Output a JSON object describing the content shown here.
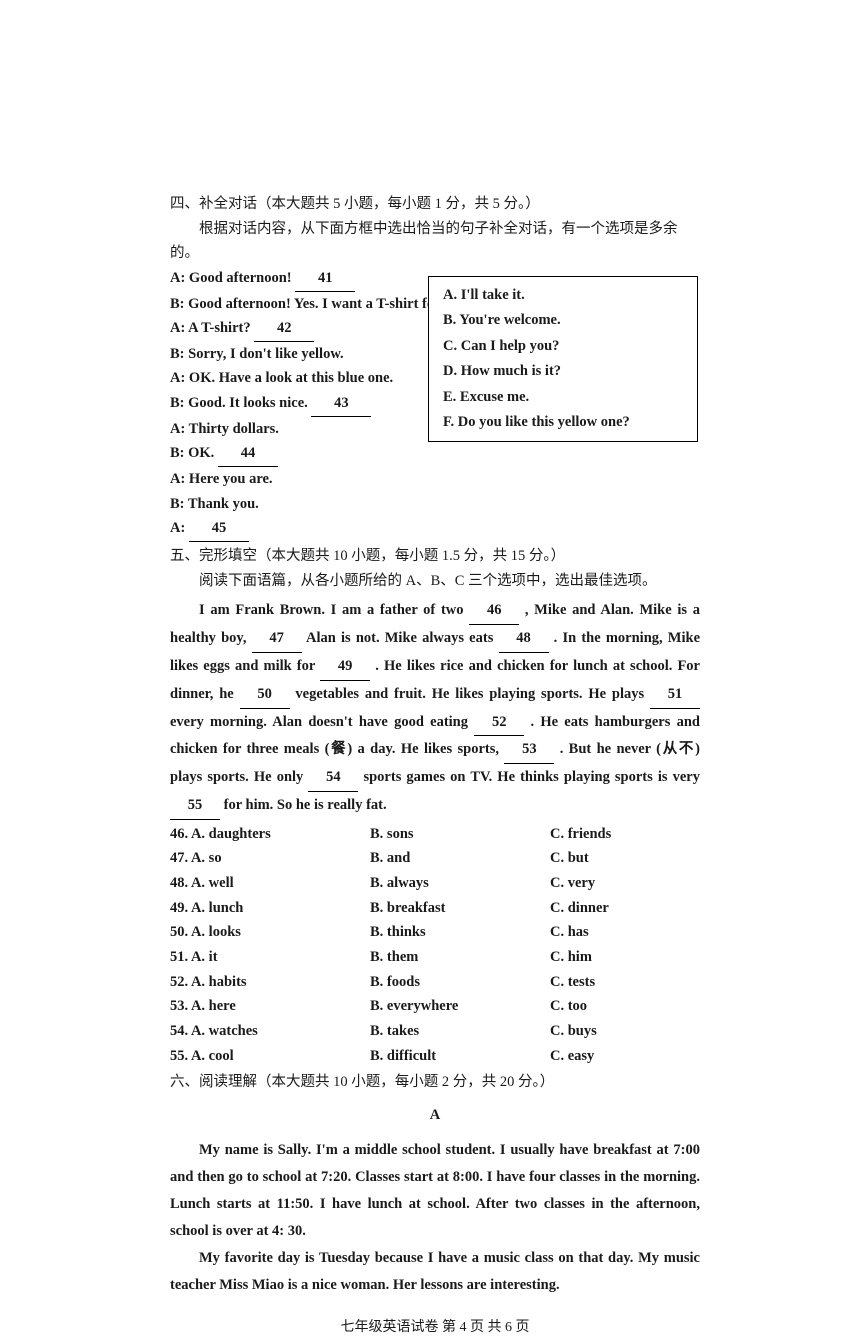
{
  "section4": {
    "title": "四、补全对话（本大题共 5 小题，每小题 1 分，共 5 分。）",
    "instruction": "根据对话内容，从下面方框中选出恰当的句子补全对话，有一个选项是多余的。",
    "lines": {
      "a1_pre": "A: Good afternoon!",
      "a1_blank": "41",
      "b1": "B: Good afternoon! Yes. I want a T-shirt for my son.",
      "a2_pre": "A: A T-shirt?",
      "a2_blank": "42",
      "b2": "B: Sorry, I don't like yellow.",
      "a3": "A: OK. Have a look at this blue one.",
      "b3_pre": "B: Good. It looks nice.",
      "b3_blank": "43",
      "a4": "A: Thirty dollars.",
      "b4_pre": "B: OK.",
      "b4_blank": "44",
      "a5": "A: Here you are.",
      "b5": "B: Thank you.",
      "a6_pre": "A:",
      "a6_blank": "45"
    },
    "box": {
      "A": "A. I'll take it.",
      "B": "B. You're welcome.",
      "C": "C. Can I help you?",
      "D": "D. How much is it?",
      "E": "E. Excuse me.",
      "F": "F. Do you like this yellow one?"
    }
  },
  "section5": {
    "title": "五、完形填空（本大题共 10 小题，每小题 1.5 分，共 15 分。）",
    "instruction": "阅读下面语篇，从各小题所给的 A、B、C  三个选项中，选出最佳选项。",
    "passage_parts": {
      "p1": "I am Frank Brown. I am a father of two ",
      "b46": "46",
      "p2": " , Mike and Alan. Mike is a healthy boy, ",
      "b47": "47",
      "p3": " Alan is not. Mike always eats ",
      "b48": "48",
      "p4": " . In the morning, Mike likes eggs and milk for ",
      "b49": "49",
      "p5": " . He likes rice and chicken for lunch at school. For dinner, he ",
      "b50": "50",
      "p6": " vegetables and fruit. He likes playing sports. He plays ",
      "b51": "51",
      "p7": " every morning. Alan doesn't have good eating ",
      "b52": "52",
      "p8": " . He eats hamburgers and chicken for three meals (餐) a day. He likes sports, ",
      "b53": "53",
      "p9": " . But he never (从不) plays sports. He only ",
      "b54": "54",
      "p10": " sports games on TV. He thinks playing sports is very ",
      "b55": "55",
      "p11": " for him. So he is really fat."
    },
    "choices": [
      {
        "n": "46.",
        "a": "A. daughters",
        "b": "B. sons",
        "c": "C. friends"
      },
      {
        "n": "47.",
        "a": "A. so",
        "b": "B. and",
        "c": "C. but"
      },
      {
        "n": "48.",
        "a": "A. well",
        "b": "B. always",
        "c": "C. very"
      },
      {
        "n": "49.",
        "a": "A. lunch",
        "b": "B. breakfast",
        "c": "C. dinner"
      },
      {
        "n": "50.",
        "a": "A. looks",
        "b": "B. thinks",
        "c": "C. has"
      },
      {
        "n": "51.",
        "a": "A. it",
        "b": "B. them",
        "c": "C. him"
      },
      {
        "n": "52.",
        "a": "A. habits",
        "b": "B. foods",
        "c": "C. tests"
      },
      {
        "n": "53.",
        "a": "A. here",
        "b": "B. everywhere",
        "c": "C. too"
      },
      {
        "n": "54.",
        "a": "A. watches",
        "b": "B. takes",
        "c": "C. buys"
      },
      {
        "n": "55.",
        "a": "A. cool",
        "b": "B. difficult",
        "c": "C. easy"
      }
    ]
  },
  "section6": {
    "title": "六、阅读理解（本大题共 10 小题，每小题 2 分，共 20 分。）",
    "label": "A",
    "para1": "My name is Sally. I'm a middle school student. I usually have breakfast at 7:00 and then go to school at 7:20. Classes start at 8:00. I have four classes in the morning. Lunch starts at 11:50. I have lunch at school. After two classes in the afternoon, school is over at 4: 30.",
    "para2": "My favorite day is Tuesday because I have a music class on that day. My music teacher Miss Miao is a nice woman. Her lessons are interesting."
  },
  "footer": "七年级英语试卷   第 4 页   共 6 页"
}
